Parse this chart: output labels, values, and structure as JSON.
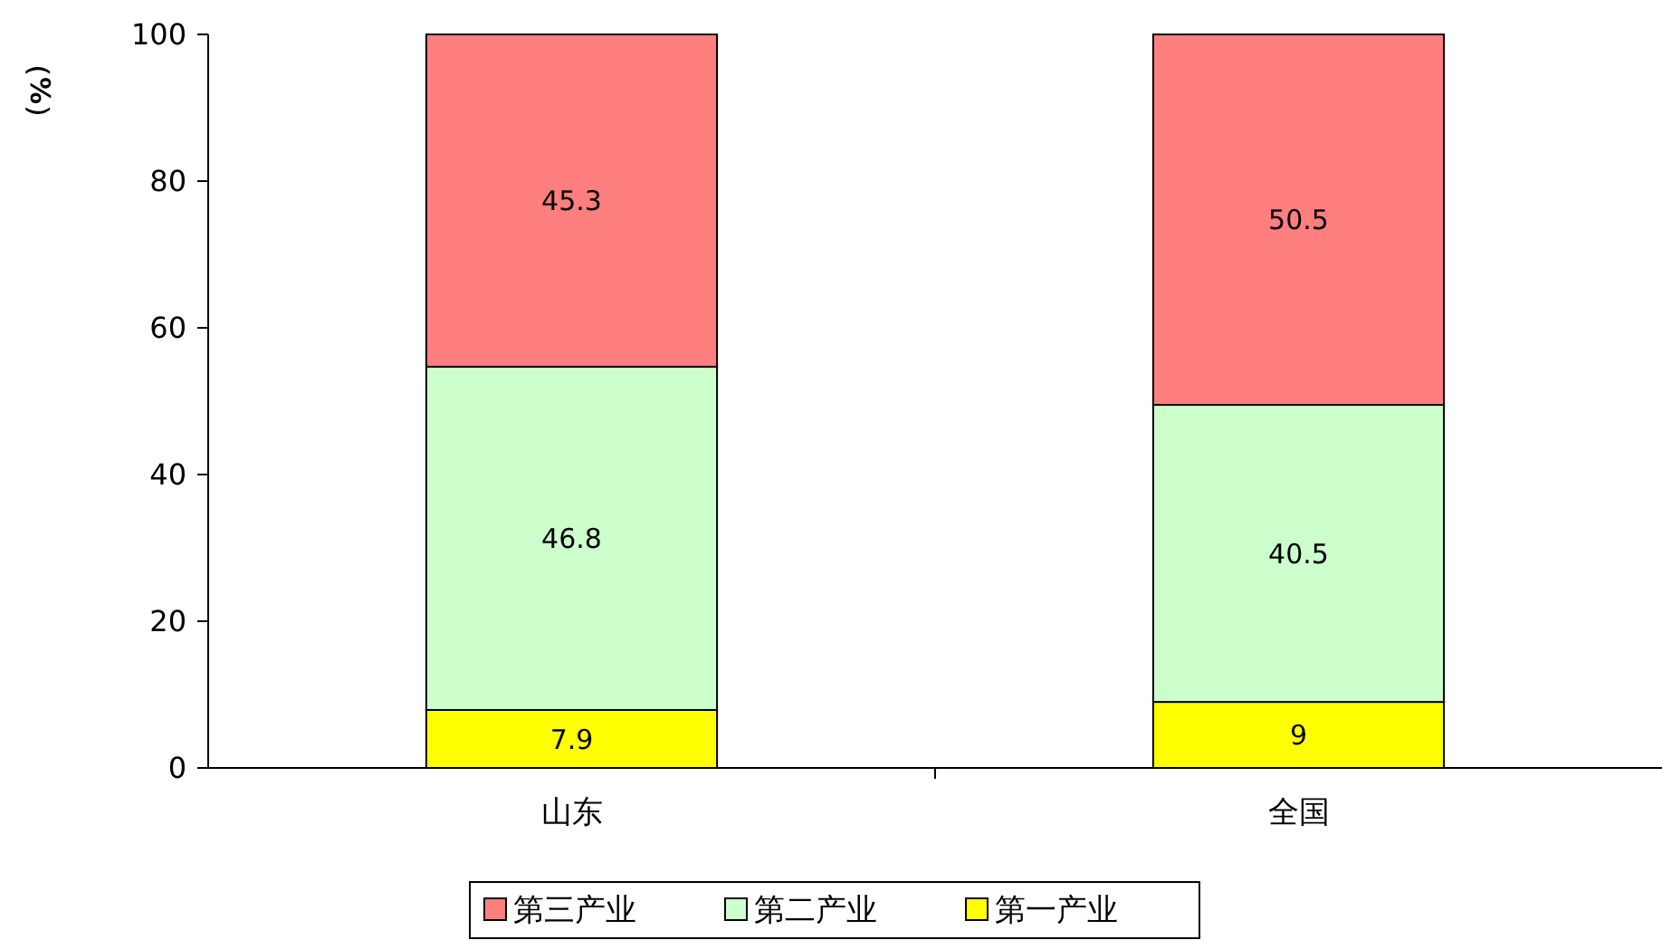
{
  "chart_data": {
    "type": "bar",
    "stacked": true,
    "ylabel": "（%）",
    "categories": [
      "山东",
      "全国"
    ],
    "ylim": [
      0,
      100
    ],
    "yticks": [
      0,
      20,
      40,
      60,
      80,
      100
    ],
    "grid": false,
    "legend": "bottom",
    "data_labels": true,
    "series": [
      {
        "name": "第一产业",
        "color": "#ffff00",
        "values": [
          7.9,
          9
        ]
      },
      {
        "name": "第二产业",
        "color": "#ccffcc",
        "values": [
          46.8,
          40.5
        ]
      },
      {
        "name": "第三产业",
        "color": "#ff7f7f",
        "values": [
          45.3,
          50.5
        ]
      }
    ]
  }
}
